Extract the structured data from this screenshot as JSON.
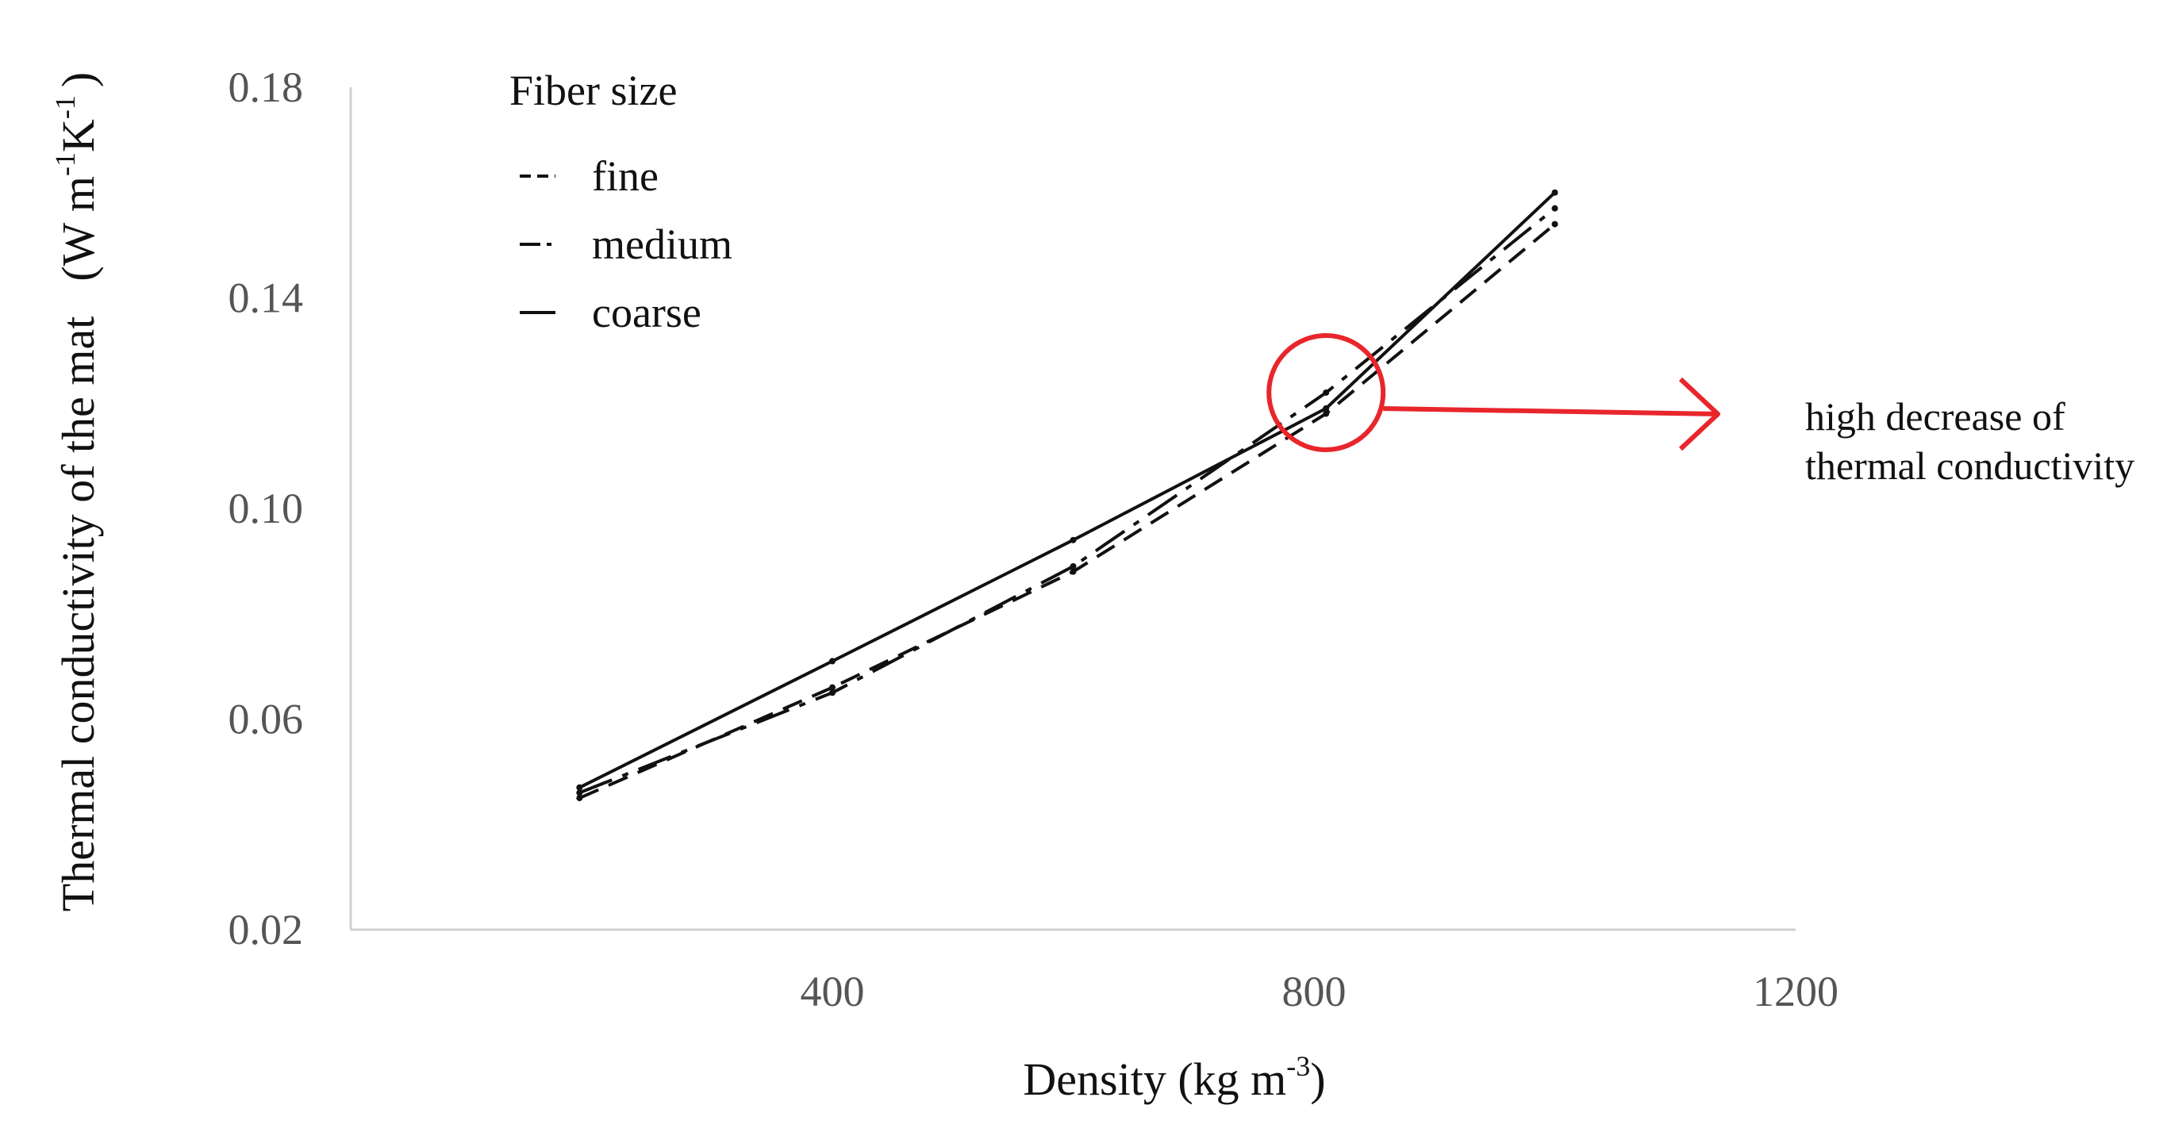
{
  "chart_data": {
    "type": "line",
    "xlabel": {
      "main": "Density (kg m",
      "sup": "-3",
      "end": ")"
    },
    "ylabel": {
      "main": "Thermal conductivity of the mat",
      "unit_open": "(W m",
      "sup1": "-1",
      "mid": "K",
      "sup2": "-1",
      "end": ")"
    },
    "xlim": [
      0,
      1200
    ],
    "ylim": [
      0.02,
      0.18
    ],
    "xticks": [
      400,
      800,
      1200
    ],
    "xtick_labels": [
      "400",
      "800",
      "1200"
    ],
    "yticks": [
      0.02,
      0.06,
      0.1,
      0.14,
      0.18
    ],
    "ytick_labels": [
      "0.02",
      "0.06",
      "0.10",
      "0.14",
      "0.18"
    ],
    "grid": false,
    "legend": {
      "title": "Fiber size",
      "position": "top-left"
    },
    "series": [
      {
        "name": "fine",
        "style": "dashed",
        "x": [
          190,
          400,
          600,
          810,
          1000
        ],
        "y": [
          0.045,
          0.066,
          0.088,
          0.118,
          0.154
        ]
      },
      {
        "name": "medium",
        "style": "dash-dot",
        "x": [
          190,
          400,
          600,
          810,
          1000
        ],
        "y": [
          0.046,
          0.065,
          0.089,
          0.122,
          0.157
        ]
      },
      {
        "name": "coarse",
        "style": "solid",
        "x": [
          190,
          400,
          600,
          810,
          1000
        ],
        "y": [
          0.047,
          0.071,
          0.094,
          0.119,
          0.16
        ]
      }
    ],
    "annotation": {
      "lines": [
        "high decrease of",
        "thermal conductivity"
      ],
      "circle_x": 810,
      "circle_y": 0.122,
      "color": "#e8262b"
    }
  }
}
